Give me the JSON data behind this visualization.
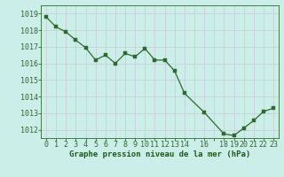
{
  "x": [
    0,
    1,
    2,
    3,
    4,
    5,
    6,
    7,
    8,
    9,
    10,
    11,
    12,
    13,
    14,
    16,
    18,
    19,
    20,
    21,
    22,
    23
  ],
  "y": [
    1018.8,
    1018.2,
    1017.9,
    1017.4,
    1016.95,
    1016.2,
    1016.5,
    1016.0,
    1016.6,
    1016.4,
    1016.9,
    1016.2,
    1016.2,
    1015.55,
    1014.2,
    1013.05,
    1011.75,
    1011.65,
    1012.1,
    1012.55,
    1013.1,
    1013.3
  ],
  "line_color": "#2d6a2d",
  "marker_color": "#2d6a2d",
  "bg_color": "#cceee8",
  "grid_color": "#c8c8d8",
  "xlabel": "Graphe pression niveau de la mer (hPa)",
  "xlabel_color": "#1a5c1a",
  "tick_color": "#2d6a2d",
  "ylim": [
    1011.5,
    1019.5
  ],
  "xlim": [
    -0.5,
    23.5
  ],
  "font_size": 6.5
}
